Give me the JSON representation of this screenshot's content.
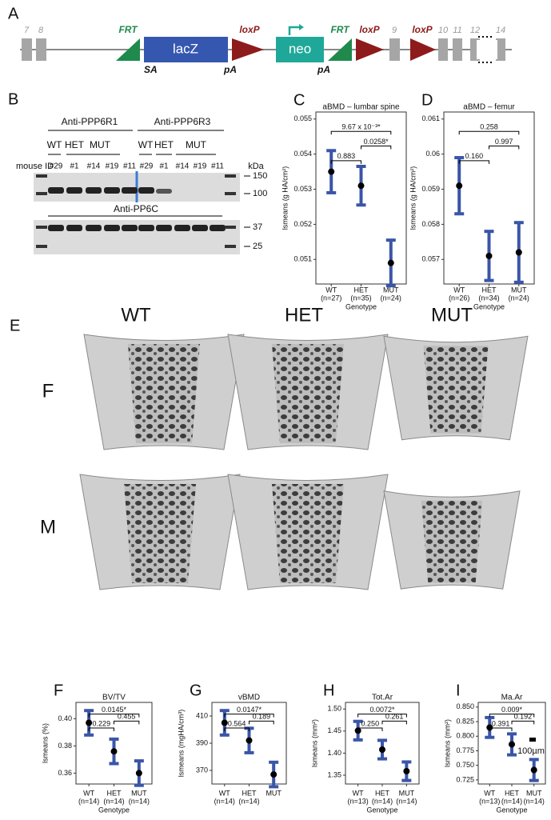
{
  "construct": {
    "label": "A",
    "exons_left": [
      "7",
      "8"
    ],
    "elements": [
      "FRT",
      "lacZ",
      "loxP",
      "neo",
      "FRT",
      "loxP",
      "loxP"
    ],
    "sublabels": [
      "SA",
      "pA",
      "pA"
    ],
    "exons_right": [
      "9",
      "10",
      "11",
      "12",
      "14"
    ]
  },
  "blot": {
    "label": "B",
    "antibodies": [
      "Anti-PPP6R1",
      "Anti-PPP6R3",
      "Anti-PP6C"
    ],
    "genotypes": [
      "WT",
      "HET",
      "MUT",
      "WT",
      "HET",
      "MUT"
    ],
    "mouse_id_label": "mouse ID",
    "mouse_ids": [
      "#29",
      "#1",
      "#14",
      "#19",
      "#11",
      "#29",
      "#1",
      "#14",
      "#19",
      "#11"
    ],
    "kda_label": "kDa",
    "markers": [
      "150",
      "100",
      "37",
      "25"
    ]
  },
  "imaging": {
    "label": "E",
    "columns": [
      "WT",
      "HET",
      "MUT"
    ],
    "rows": [
      "F",
      "M"
    ],
    "scale_bar": "100µm"
  },
  "chart_data": [
    {
      "type": "pointrange",
      "label": "C",
      "title": "aBMD – lumbar spine",
      "y_label": "lsmeans (g HA/cm²)",
      "x_label": "Genotype",
      "categories": [
        "WT",
        "HET",
        "MUT"
      ],
      "category_n": [
        "(n=27)",
        "(n=35)",
        "(n=24)"
      ],
      "values": [
        0.0535,
        0.0531,
        0.0509
      ],
      "errors": [
        0.0006,
        0.00055,
        0.00065
      ],
      "color": "#3a55a8",
      "ylim": [
        0.0503,
        0.0552
      ],
      "yticks": [
        0.051,
        0.052,
        0.053,
        0.054,
        0.055
      ],
      "comparison_labels": [
        "0.883",
        "0.0258*",
        "9.67 x 10⁻³*"
      ]
    },
    {
      "type": "pointrange",
      "label": "D",
      "title": "aBMD – femur",
      "y_label": "lsmeans (g HA/cm²)",
      "x_label": "Genotype",
      "categories": [
        "WT",
        "HET",
        "MUT"
      ],
      "category_n": [
        "(n=26)",
        "(n=34)",
        "(n=24)"
      ],
      "values": [
        0.0591,
        0.0571,
        0.0572
      ],
      "errors": [
        0.0008,
        0.0007,
        0.00085
      ],
      "color": "#3a55a8",
      "ylim": [
        0.0563,
        0.0612
      ],
      "yticks": [
        0.057,
        0.058,
        0.059,
        0.06,
        0.061
      ],
      "comparison_labels": [
        "0.160",
        "0.997",
        "0.258"
      ]
    },
    {
      "type": "pointrange",
      "label": "F",
      "title": "BV/TV",
      "y_label": "lsmeans (%)",
      "x_label": "Genotype",
      "categories": [
        "WT",
        "HET",
        "MUT"
      ],
      "category_n": [
        "(n=14)",
        "(n=14)",
        "(n=14)"
      ],
      "values": [
        0.397,
        0.376,
        0.36
      ],
      "errors": [
        0.009,
        0.009,
        0.009
      ],
      "color": "#3a55a8",
      "ylim": [
        0.352,
        0.412
      ],
      "yticks": [
        0.36,
        0.38,
        {
          "value": 0.4,
          "label": "0.40"
        }
      ],
      "comparison_labels": [
        "0.229",
        "0.455",
        "0.0145*"
      ]
    },
    {
      "type": "pointrange",
      "label": "G",
      "title": "vBMD",
      "y_label": "lsmeans (mgHA/cm³)",
      "categories": [
        "WT",
        "HET",
        "MUT"
      ],
      "category_n": [
        "(n=14)",
        "(n=14)",
        null
      ],
      "values": [
        405,
        392,
        367
      ],
      "errors": [
        9,
        9,
        9
      ],
      "color": "#3a55a8",
      "ylim": [
        360,
        420
      ],
      "yticks": [
        370,
        390,
        410
      ],
      "comparison_labels": [
        "0.564",
        "0.189",
        "0.0147*"
      ]
    },
    {
      "type": "pointrange",
      "label": "H",
      "title": "Tot.Ar",
      "y_label": "lsmeans (mm²)",
      "x_label": "Genotype",
      "categories": [
        "WT",
        "HET",
        "MUT"
      ],
      "category_n": [
        "(n=13)",
        "(n=14)",
        "(n=14)"
      ],
      "values": [
        1.451,
        1.408,
        1.359
      ],
      "errors": [
        0.021,
        0.021,
        0.021
      ],
      "color": "#3a55a8",
      "ylim": [
        1.33,
        1.515
      ],
      "yticks": [
        1.35,
        {
          "value": 1.4,
          "label": "1.40"
        },
        1.45,
        {
          "value": 1.5,
          "label": "1.50"
        }
      ],
      "comparison_labels": [
        "0.250",
        "0.261",
        "0.0072*"
      ]
    },
    {
      "type": "pointrange",
      "label": "I",
      "title": "Ma.Ar",
      "y_label": "lsmeans (mm²)",
      "x_label": "Genotype",
      "categories": [
        "WT",
        "HET",
        "MUT"
      ],
      "category_n": [
        "(n=13)",
        "(n=14)",
        "(n=14)"
      ],
      "values": [
        0.815,
        0.786,
        0.742
      ],
      "errors": [
        0.017,
        0.018,
        0.018
      ],
      "color": "#3a55a8",
      "ylim": [
        0.718,
        0.858
      ],
      "yticks": [
        0.725,
        {
          "value": 0.75,
          "label": "0.750"
        },
        0.775,
        {
          "value": 0.8,
          "label": "0.800"
        },
        0.825,
        {
          "value": 0.85,
          "label": "0.850"
        }
      ],
      "comparison_labels": [
        "0.391",
        "0.192",
        "0.009*"
      ]
    }
  ]
}
